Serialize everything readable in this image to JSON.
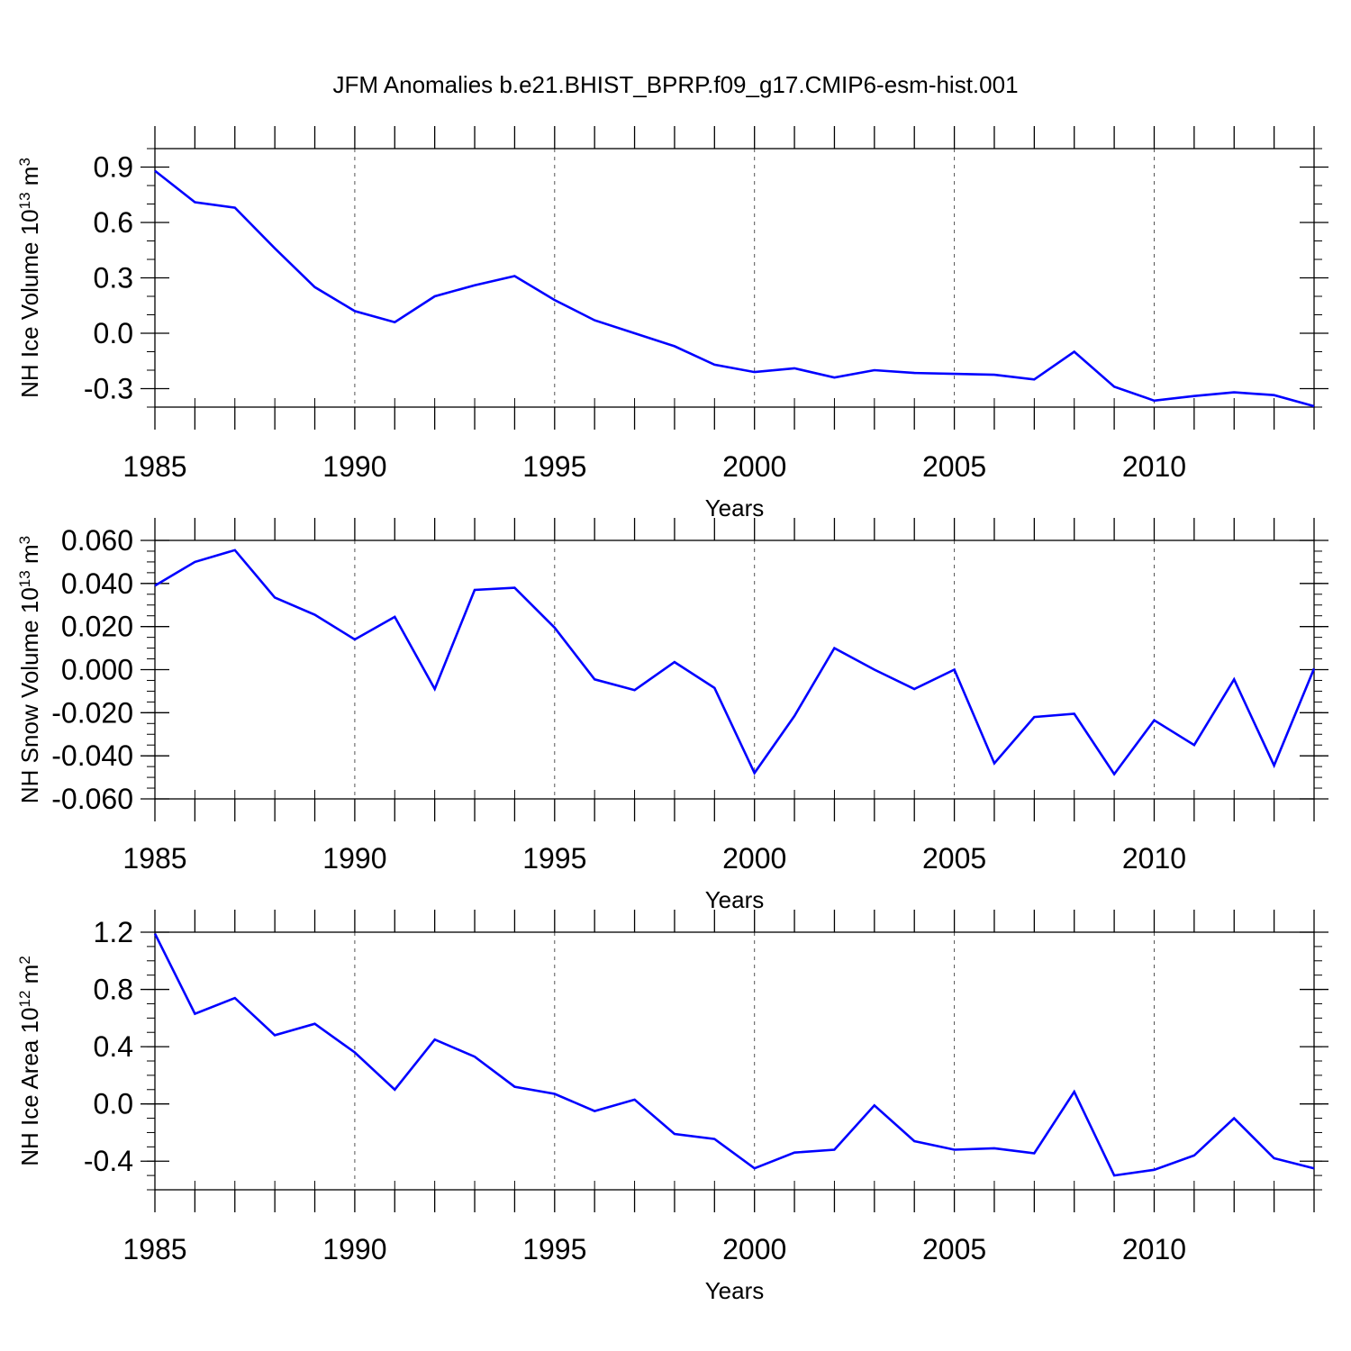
{
  "title": "JFM Anomalies b.e21.BHIST_BPRP.f09_g17.CMIP6-esm-hist.001",
  "colors": {
    "line": "#0000ff",
    "axis": "#000000",
    "grid": "#555555"
  },
  "chart_data": [
    {
      "type": "line",
      "name": "ice-volume",
      "ylabel": {
        "base": "NH Ice Volume 10",
        "exp1": "13",
        "mid": " m",
        "exp2": "3"
      },
      "xlabel": "Years",
      "xlim": [
        1985,
        2014
      ],
      "ylim": [
        -0.4,
        1.0
      ],
      "xticks": [
        1985,
        1990,
        1995,
        2000,
        2005,
        2010
      ],
      "xtick_labels": [
        "1985",
        "1990",
        "1995",
        "2000",
        "2005",
        "2010"
      ],
      "yticks": [
        0.9,
        0.6,
        0.3,
        0.0,
        -0.3
      ],
      "ytick_labels": [
        "0.9",
        "0.6",
        "0.3",
        "0.0",
        "-0.3"
      ],
      "yminor": 0.1,
      "x": [
        1985,
        1986,
        1987,
        1988,
        1989,
        1990,
        1991,
        1992,
        1993,
        1994,
        1995,
        1996,
        1997,
        1998,
        1999,
        2000,
        2001,
        2002,
        2003,
        2004,
        2005,
        2006,
        2007,
        2008,
        2009,
        2010,
        2011,
        2012,
        2013,
        2014
      ],
      "values": [
        0.88,
        0.71,
        0.68,
        0.46,
        0.25,
        0.12,
        0.06,
        0.2,
        0.26,
        0.31,
        0.18,
        0.07,
        0.0,
        -0.07,
        -0.17,
        -0.21,
        -0.19,
        -0.24,
        -0.2,
        -0.215,
        -0.22,
        -0.225,
        -0.25,
        -0.1,
        -0.29,
        -0.365,
        -0.34,
        -0.32,
        -0.335,
        -0.395
      ]
    },
    {
      "type": "line",
      "name": "snow-volume",
      "ylabel": {
        "base": "NH Snow Volume 10",
        "exp1": "13",
        "mid": " m",
        "exp2": "3"
      },
      "xlabel": "Years",
      "xlim": [
        1985,
        2014
      ],
      "ylim": [
        -0.06,
        0.06
      ],
      "xticks": [
        1985,
        1990,
        1995,
        2000,
        2005,
        2010
      ],
      "xtick_labels": [
        "1985",
        "1990",
        "1995",
        "2000",
        "2005",
        "2010"
      ],
      "yticks": [
        0.06,
        0.04,
        0.02,
        0.0,
        -0.02,
        -0.04,
        -0.06
      ],
      "ytick_labels": [
        "0.060",
        "0.040",
        "0.020",
        "0.000",
        "-0.020",
        "-0.040",
        "-0.060"
      ],
      "yminor": 0.005,
      "x": [
        1985,
        1986,
        1987,
        1988,
        1989,
        1990,
        1991,
        1992,
        1993,
        1994,
        1995,
        1996,
        1997,
        1998,
        1999,
        2000,
        2001,
        2002,
        2003,
        2004,
        2005,
        2006,
        2007,
        2008,
        2009,
        2010,
        2011,
        2012,
        2013,
        2014
      ],
      "values": [
        0.039,
        0.05,
        0.0555,
        0.0335,
        0.0255,
        0.014,
        0.0245,
        -0.009,
        0.037,
        0.038,
        0.0195,
        -0.0045,
        -0.0095,
        0.0035,
        -0.0085,
        -0.048,
        -0.0215,
        0.01,
        0.0,
        -0.009,
        0.0,
        -0.0435,
        -0.022,
        -0.0205,
        -0.0485,
        -0.0235,
        -0.035,
        -0.0045,
        -0.0445,
        0.0005
      ]
    },
    {
      "type": "line",
      "name": "ice-area",
      "ylabel": {
        "base": "NH Ice Area 10",
        "exp1": "12",
        "mid": " m",
        "exp2": "2"
      },
      "xlabel": "Years",
      "xlim": [
        1985,
        2014
      ],
      "ylim": [
        -0.6,
        1.2
      ],
      "xticks": [
        1985,
        1990,
        1995,
        2000,
        2005,
        2010
      ],
      "xtick_labels": [
        "1985",
        "1990",
        "1995",
        "2000",
        "2005",
        "2010"
      ],
      "yticks": [
        1.2,
        0.8,
        0.4,
        0.0,
        -0.4
      ],
      "ytick_labels": [
        "1.2",
        "0.8",
        "0.4",
        "0.0",
        "-0.4"
      ],
      "yminor": 0.1,
      "x": [
        1985,
        1986,
        1987,
        1988,
        1989,
        1990,
        1991,
        1992,
        1993,
        1994,
        1995,
        1996,
        1997,
        1998,
        1999,
        2000,
        2001,
        2002,
        2003,
        2004,
        2005,
        2006,
        2007,
        2008,
        2009,
        2010,
        2011,
        2012,
        2013,
        2014
      ],
      "values": [
        1.19,
        0.63,
        0.74,
        0.48,
        0.56,
        0.36,
        0.1,
        0.45,
        0.33,
        0.12,
        0.07,
        -0.05,
        0.03,
        -0.21,
        -0.245,
        -0.45,
        -0.34,
        -0.32,
        -0.01,
        -0.26,
        -0.32,
        -0.31,
        -0.345,
        0.085,
        -0.5,
        -0.46,
        -0.36,
        -0.1,
        -0.38,
        -0.45
      ]
    }
  ]
}
